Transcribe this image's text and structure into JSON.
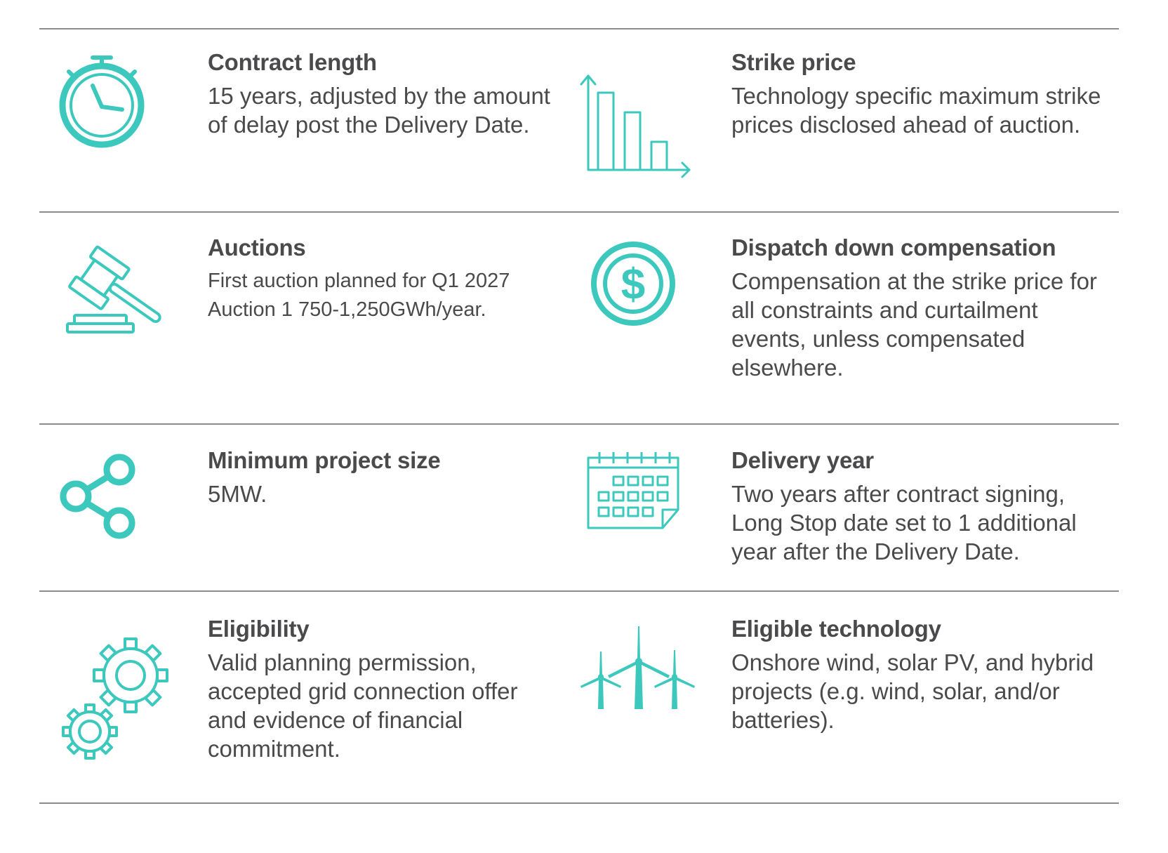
{
  "accent_color": "#3cc8bd",
  "items": [
    {
      "icon": "stopwatch-icon",
      "title": "Contract length",
      "body": "15 years, adjusted by the amount of delay post the Delivery Date."
    },
    {
      "icon": "declining-bar-chart-icon",
      "title": "Strike price",
      "body": "Technology specific maximum strike prices disclosed ahead of auction."
    },
    {
      "icon": "gavel-icon",
      "title": "Auctions",
      "body_lines": [
        "First auction planned for Q1 2027",
        "Auction 1 750-1,250GWh/year."
      ]
    },
    {
      "icon": "dollar-coin-icon",
      "title": "Dispatch down compensation",
      "body": "Compensation at the strike price for all constraints and curtailment events, unless compensated elsewhere."
    },
    {
      "icon": "share-icon",
      "title": "Minimum project size",
      "body": "5MW."
    },
    {
      "icon": "calendar-icon",
      "title": "Delivery year",
      "body": "Two years after contract signing, Long Stop date set to 1 additional year after the Delivery Date."
    },
    {
      "icon": "gears-icon",
      "title": "Eligibility",
      "body": "Valid planning permission, accepted grid connection offer and evidence of financial commitment."
    },
    {
      "icon": "wind-turbines-icon",
      "title": "Eligible technology",
      "body": "Onshore wind, solar PV, and hybrid projects (e.g. wind, solar, and/or batteries)."
    }
  ]
}
